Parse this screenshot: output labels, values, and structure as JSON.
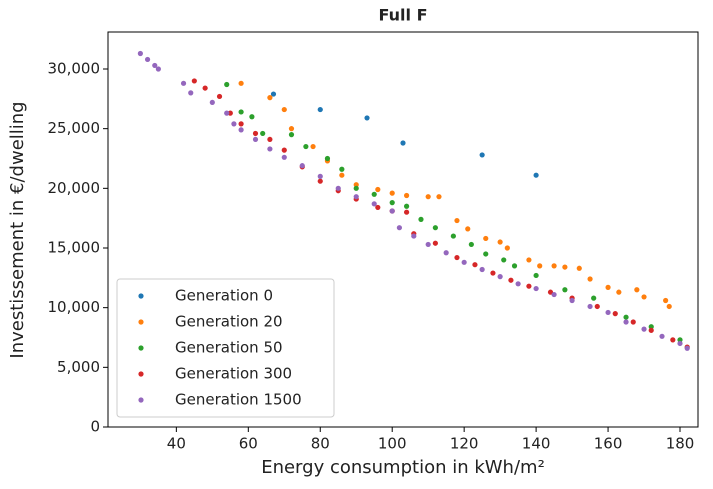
{
  "chart_data": {
    "type": "scatter",
    "title": "Full F",
    "x_label": "Energy consumption in kWh/m²",
    "y_label": "Investissement in €/dwelling",
    "xlim": [
      21,
      185
    ],
    "ylim": [
      0,
      33100
    ],
    "xticks": [
      40,
      60,
      80,
      100,
      120,
      140,
      160,
      180
    ],
    "yticks": [
      0,
      {
        "value": 5000,
        "label": "5,000"
      },
      {
        "value": 10000,
        "label": "10,000"
      },
      {
        "value": 15000,
        "label": "15,000"
      },
      {
        "value": 20000,
        "label": "20,000"
      },
      {
        "value": 25000,
        "label": "25,000"
      },
      {
        "value": 30000,
        "label": "30,000"
      }
    ],
    "legend": "lower left",
    "series": [
      {
        "name": "Generation 0",
        "color": "#1f77b4",
        "x": [
          67,
          80,
          93,
          103,
          125,
          140
        ],
        "values": [
          27900,
          26600,
          25900,
          23800,
          22800,
          21100
        ]
      },
      {
        "name": "Generation 20",
        "color": "#ff7f0e",
        "x": [
          58,
          66,
          70,
          72,
          78,
          82,
          86,
          90,
          96,
          100,
          104,
          110,
          113,
          118,
          121,
          126,
          130,
          132,
          138,
          141,
          145,
          148,
          152,
          155,
          160,
          163,
          168,
          170,
          176,
          177
        ],
        "values": [
          28800,
          27600,
          26600,
          25000,
          23500,
          22300,
          21100,
          20300,
          19900,
          19600,
          19400,
          19300,
          19300,
          17300,
          16600,
          15800,
          15500,
          15000,
          14000,
          13500,
          13500,
          13400,
          13300,
          12400,
          11700,
          11300,
          11500,
          10900,
          10600,
          10100
        ]
      },
      {
        "name": "Generation 50",
        "color": "#2ca02c",
        "x": [
          54,
          58,
          61,
          64,
          72,
          76,
          82,
          86,
          90,
          95,
          100,
          104,
          108,
          112,
          117,
          122,
          126,
          131,
          134,
          140,
          148,
          156,
          165,
          172,
          180
        ],
        "values": [
          28700,
          26400,
          26000,
          24600,
          24500,
          23500,
          22500,
          21600,
          20000,
          19500,
          18800,
          18500,
          17400,
          16700,
          16000,
          15300,
          14500,
          14000,
          13500,
          12700,
          11500,
          10800,
          9200,
          8400,
          7300
        ]
      },
      {
        "name": "Generation 300",
        "color": "#d62728",
        "x": [
          45,
          48,
          52,
          55,
          58,
          62,
          66,
          70,
          75,
          80,
          85,
          90,
          96,
          100,
          104,
          106,
          112,
          118,
          123,
          128,
          133,
          138,
          144,
          150,
          157,
          162,
          167,
          172,
          178,
          182
        ],
        "values": [
          29000,
          28400,
          27700,
          26300,
          25400,
          24600,
          24100,
          23200,
          21800,
          20600,
          19800,
          19100,
          18400,
          18100,
          18000,
          16200,
          15400,
          14200,
          13600,
          12900,
          12300,
          11800,
          11300,
          10800,
          10100,
          9500,
          8800,
          8100,
          7300,
          6700
        ]
      },
      {
        "name": "Generation 1500",
        "color": "#9467bd",
        "x": [
          30,
          32,
          34,
          35,
          42,
          44,
          50,
          54,
          56,
          58,
          62,
          66,
          70,
          75,
          80,
          85,
          90,
          95,
          100,
          102,
          106,
          110,
          115,
          120,
          125,
          130,
          135,
          140,
          145,
          150,
          155,
          160,
          165,
          170,
          175,
          180,
          182
        ],
        "values": [
          31300,
          30800,
          30300,
          30000,
          28800,
          28000,
          27200,
          26300,
          25400,
          24900,
          24100,
          23300,
          22600,
          21900,
          21000,
          20000,
          19300,
          18700,
          18100,
          16700,
          16000,
          15300,
          14600,
          13800,
          13200,
          12600,
          12000,
          11600,
          11100,
          10600,
          10100,
          9600,
          8800,
          8200,
          7600,
          7000,
          6600
        ]
      }
    ]
  }
}
